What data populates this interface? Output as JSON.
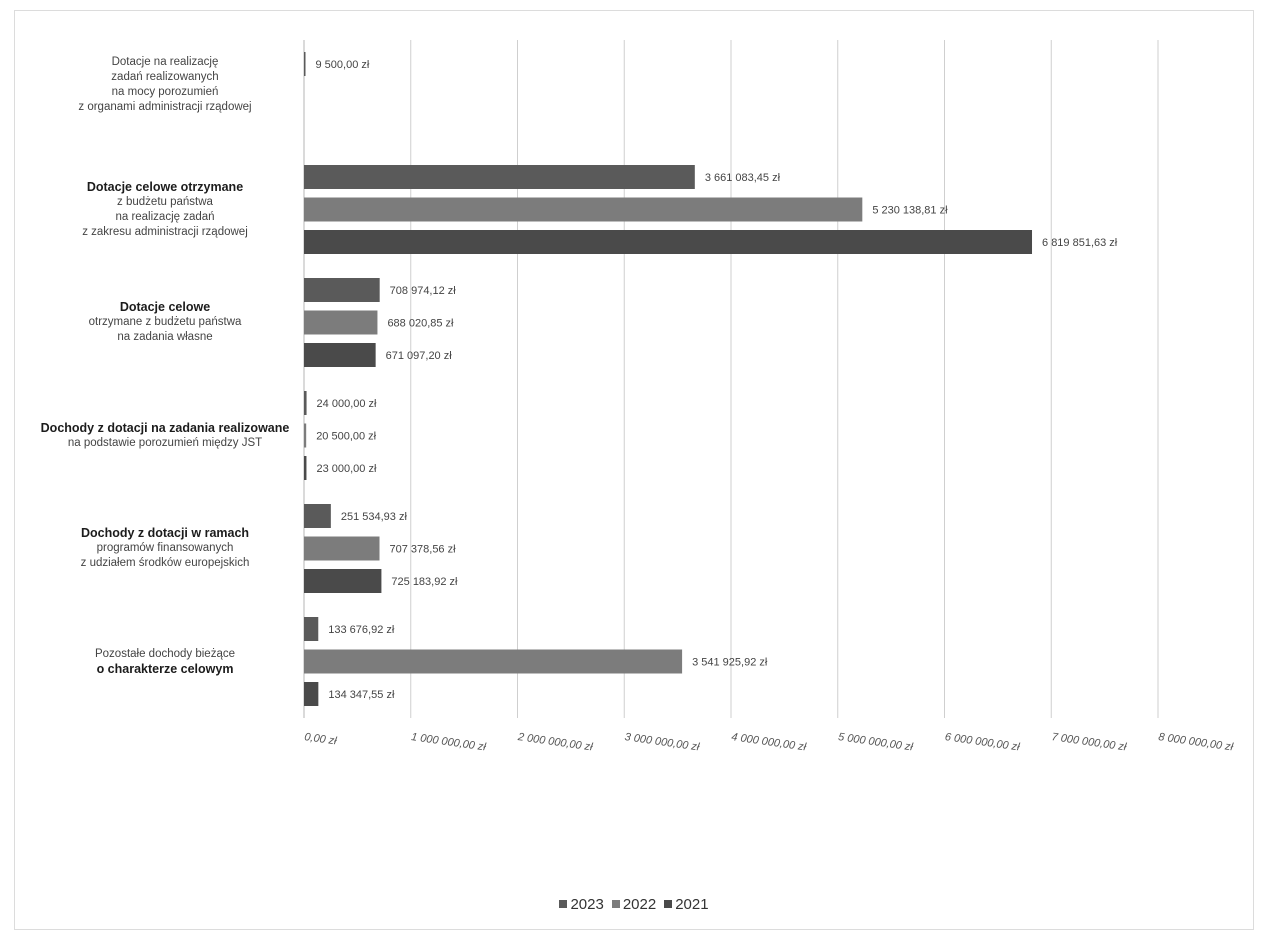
{
  "chart_data": {
    "type": "bar",
    "orientation": "horizontal",
    "categories": [
      {
        "lines": [
          {
            "text": "Dotacje na realizację",
            "bold": false
          },
          {
            "text": "zadań realizowanych",
            "bold": false
          },
          {
            "text": "na mocy porozumień",
            "bold": false
          },
          {
            "text": "z organami administracji rządowej",
            "bold": false
          }
        ]
      },
      {
        "lines": [
          {
            "text": "Dotacje celowe otrzymane",
            "bold": true
          },
          {
            "text": "z budżetu państwa",
            "bold": false
          },
          {
            "text": "na realizację zadań",
            "bold": false
          },
          {
            "text": "z zakresu administracji rządowej",
            "bold": false
          }
        ]
      },
      {
        "lines": [
          {
            "text": "Dotacje celowe",
            "bold": true
          },
          {
            "text": "otrzymane z budżetu państwa",
            "bold": false
          },
          {
            "text": "na zadania własne",
            "bold": false
          }
        ]
      },
      {
        "lines": [
          {
            "text": "Dochody z dotacji na zadania realizowane",
            "bold": true
          },
          {
            "text": "na podstawie porozumień między JST",
            "bold": false
          }
        ]
      },
      {
        "lines": [
          {
            "text": "Dochody z dotacji w ramach",
            "bold": true
          },
          {
            "text": "programów finansowanych",
            "bold": false
          },
          {
            "text": "z udziałem środków europejskich",
            "bold": false
          }
        ]
      },
      {
        "lines": [
          {
            "text": "Pozostałe dochody bieżące",
            "bold": false
          },
          {
            "text": "o charakterze celowym",
            "bold": true
          }
        ]
      }
    ],
    "series": [
      {
        "name": "2023",
        "color": "#5a5a5a",
        "values": [
          9500.0,
          3661083.45,
          708974.12,
          24000.0,
          251534.93,
          133676.92
        ],
        "labels": [
          "9 500,00 zł",
          "3 661 083,45 zł",
          "708 974,12 zł",
          "24 000,00 zł",
          "251 534,93 zł",
          "133 676,92 zł"
        ]
      },
      {
        "name": "2022",
        "color": "#7c7c7c",
        "values": [
          null,
          5230138.81,
          688020.85,
          20500.0,
          707378.56,
          3541925.92
        ],
        "labels": [
          "",
          "5 230 138,81 zł",
          "688 020,85 zł",
          "20 500,00 zł",
          "707 378,56 zł",
          "3 541 925,92 zł"
        ]
      },
      {
        "name": "2021",
        "color": "#4a4a4a",
        "values": [
          null,
          6819851.63,
          671097.2,
          23000.0,
          725183.92,
          134347.55
        ],
        "labels": [
          "",
          "6 819 851,63 zł",
          "671 097,20 zł",
          "23 000,00 zł",
          "725 183,92 zł",
          "134 347,55 zł"
        ]
      }
    ],
    "xlim": [
      0,
      8000000
    ],
    "x_ticks": [
      0,
      1000000,
      2000000,
      3000000,
      4000000,
      5000000,
      6000000,
      7000000,
      8000000
    ],
    "x_tick_labels": [
      "0,00 zł",
      "1 000 000,00 zł",
      "2 000 000,00 zł",
      "3 000 000,00 zł",
      "4 000 000,00 zł",
      "5 000 000,00 zł",
      "6 000 000,00 zł",
      "7 000 000,00 zł",
      "8 000 000,00 zł"
    ],
    "title": "",
    "xlabel": "",
    "ylabel": "",
    "grid": "vertical",
    "legend_position": "bottom",
    "legend_order": [
      "2023",
      "2022",
      "2021"
    ]
  }
}
